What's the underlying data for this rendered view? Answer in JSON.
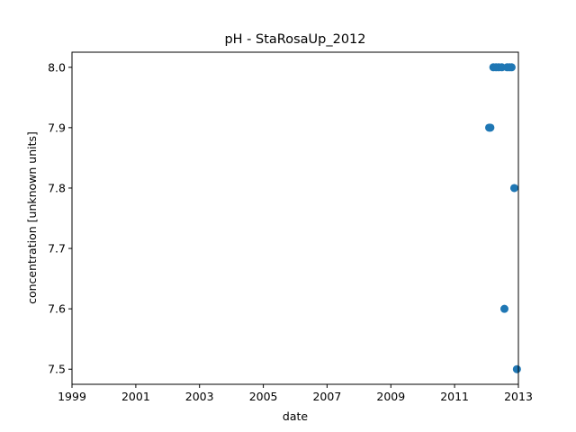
{
  "chart_data": {
    "type": "scatter",
    "title": "pH - StaRosaUp_2012",
    "xlabel": "date",
    "ylabel": "concentration [unknown units]",
    "xlim": [
      "1999-01-01",
      "2013-01-01"
    ],
    "ylim": [
      7.475,
      8.025
    ],
    "x_ticks": [
      "1999",
      "2001",
      "2003",
      "2005",
      "2007",
      "2009",
      "2011",
      "2013"
    ],
    "y_ticks": [
      "7.5",
      "7.6",
      "7.7",
      "7.8",
      "7.9",
      "8.0"
    ],
    "grid": false,
    "legend": "none",
    "color": "#1f77b4",
    "series": [
      {
        "points": [
          {
            "x": "2012-02-01",
            "y": 7.9
          },
          {
            "x": "2012-02-15",
            "y": 7.9
          },
          {
            "x": "2012-03-20",
            "y": 8.0
          },
          {
            "x": "2012-04-20",
            "y": 8.0
          },
          {
            "x": "2012-05-20",
            "y": 8.0
          },
          {
            "x": "2012-06-25",
            "y": 8.0
          },
          {
            "x": "2012-07-25",
            "y": 7.6
          },
          {
            "x": "2012-08-25",
            "y": 8.0
          },
          {
            "x": "2012-09-20",
            "y": 8.0
          },
          {
            "x": "2012-10-15",
            "y": 8.0
          },
          {
            "x": "2012-11-15",
            "y": 7.8
          },
          {
            "x": "2012-12-15",
            "y": 7.5
          }
        ]
      }
    ]
  }
}
